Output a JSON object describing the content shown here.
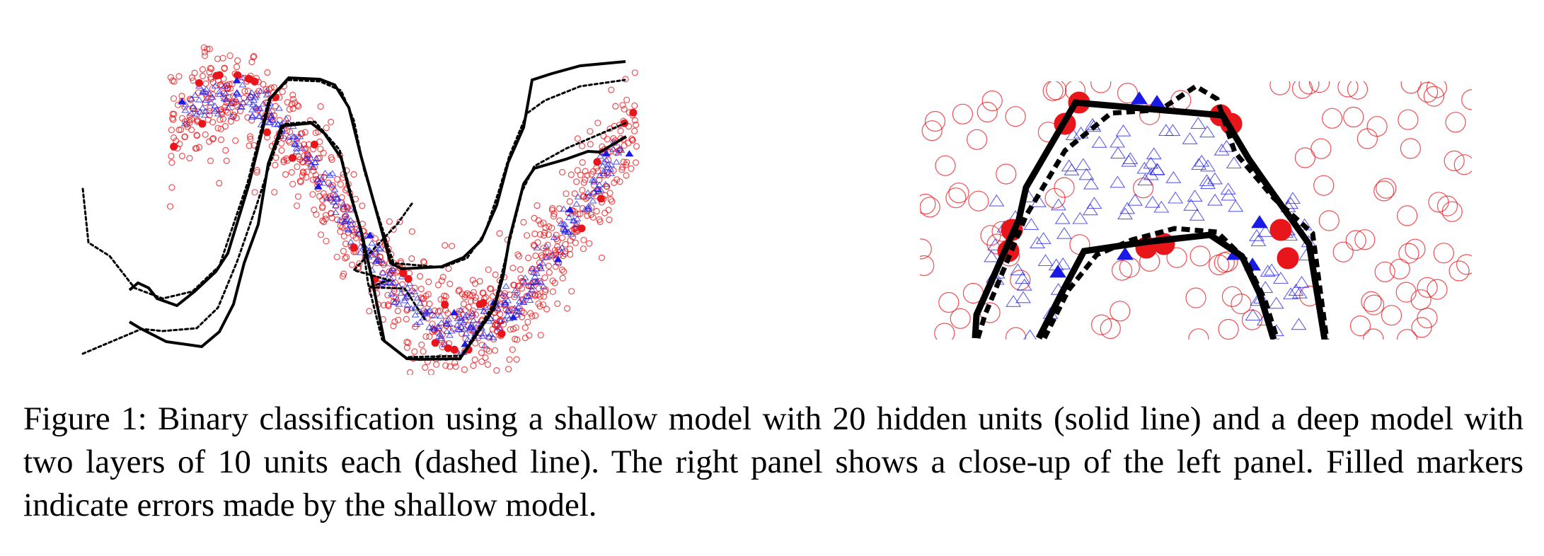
{
  "figure": {
    "caption": "Figure 1: Binary classification using a shallow model with 20 hidden units (solid line) and a deep model with two layers of 10 units each (dashed line). The right panel shows a close-up of the left panel. Filled markers indicate errors made by the shallow model."
  },
  "colors": {
    "negative_class": "#e8161b",
    "positive_class": "#1a1ae6",
    "boundary": "#000000"
  },
  "legend_semantics": {
    "negative_marker": "circle",
    "positive_marker": "triangle",
    "shallow_line": "solid",
    "deep_line": "dashed"
  }
}
